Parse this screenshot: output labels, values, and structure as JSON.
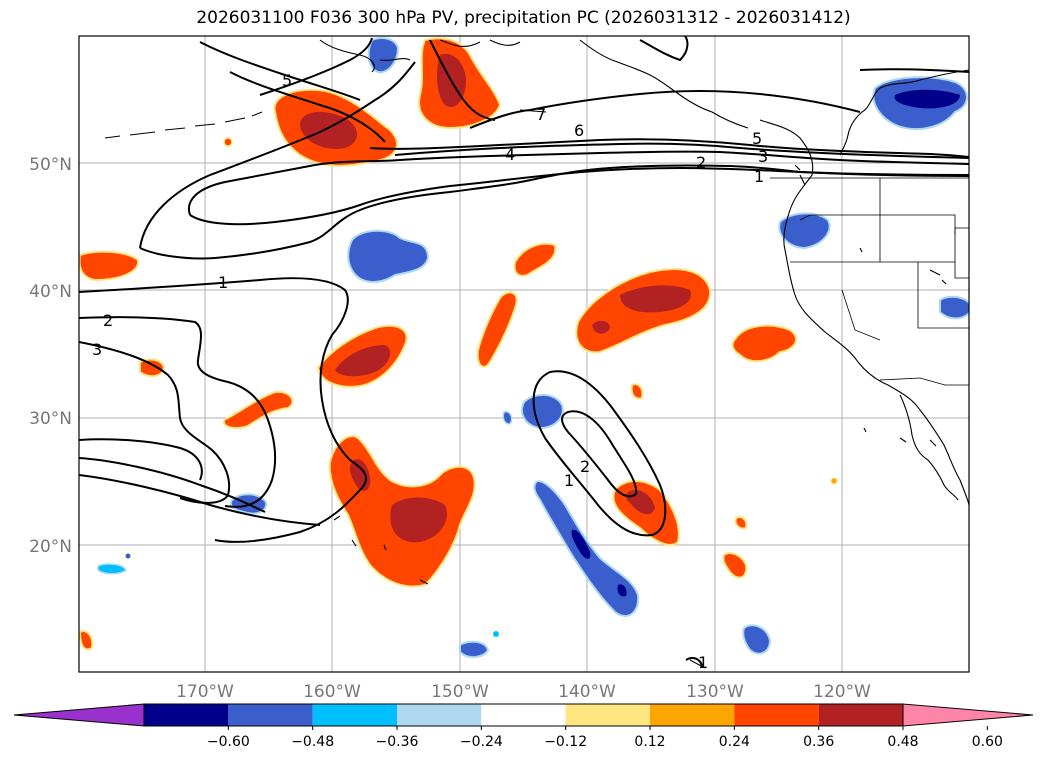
{
  "title": "2026031100 F036 300 hPa PV, precipitation PC (2026031312 - 2026031412)",
  "lat_labels": [
    "20°N",
    "30°N",
    "40°N",
    "50°N"
  ],
  "lon_labels": [
    "170°W",
    "160°W",
    "150°W",
    "140°W",
    "130°W",
    "120°W"
  ],
  "pv_contour_labels": [
    "1",
    "2",
    "3",
    "4",
    "5",
    "6",
    "7",
    "1",
    "2",
    "5",
    "3",
    "1",
    "2",
    "1"
  ],
  "colorbar": {
    "tick_labels": [
      "−0.60",
      "−0.48",
      "−0.36",
      "−0.24",
      "−0.12",
      "0.12",
      "0.24",
      "0.36",
      "0.48",
      "0.60"
    ],
    "colors": [
      "#9932cc",
      "#00008b",
      "#3a5fcd",
      "#00bfff",
      "#add8f0",
      "#ffffff",
      "#ffe680",
      "#ffa500",
      "#ff4500",
      "#b22222",
      "#ff85a8"
    ]
  },
  "shading_colors": {
    "neg_strong": "#00008b",
    "neg_mid": "#3a5fcd",
    "neg_light": "#00bfff",
    "neg_pale": "#add8f0",
    "pos_pale": "#ffe680",
    "pos_light": "#ffa500",
    "pos_mid": "#ff4500",
    "pos_strong": "#b22222"
  }
}
